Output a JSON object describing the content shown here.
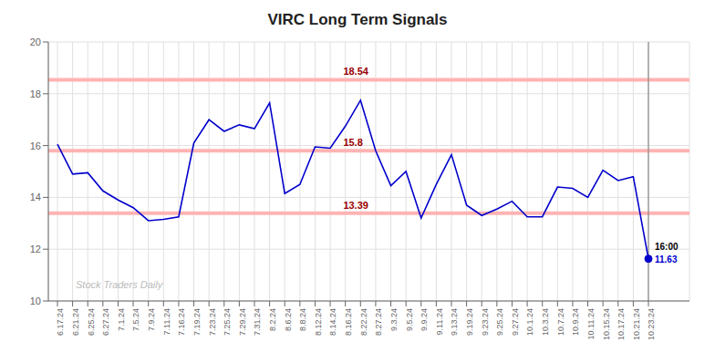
{
  "chart_data": {
    "type": "line",
    "title": "VIRC Long Term Signals",
    "categories": [
      "6.17.24",
      "6.21.24",
      "6.25.24",
      "6.27.24",
      "7.1.24",
      "7.5.24",
      "7.9.24",
      "7.11.24",
      "7.16.24",
      "7.19.24",
      "7.23.24",
      "7.25.24",
      "7.29.24",
      "7.31.24",
      "8.2.24",
      "8.6.24",
      "8.8.24",
      "8.12.24",
      "8.14.24",
      "8.16.24",
      "8.22.24",
      "8.27.24",
      "9.3.24",
      "9.5.24",
      "9.9.24",
      "9.11.24",
      "9.13.24",
      "9.19.24",
      "9.23.24",
      "9.25.24",
      "9.27.24",
      "10.1.24",
      "10.3.24",
      "10.7.24",
      "10.9.24",
      "10.11.24",
      "10.15.24",
      "10.17.24",
      "10.21.24",
      "10.23.24"
    ],
    "values": [
      16.05,
      14.9,
      14.95,
      14.25,
      13.9,
      13.6,
      13.1,
      13.15,
      13.25,
      16.1,
      17.0,
      16.55,
      16.8,
      16.65,
      17.65,
      14.15,
      14.5,
      15.95,
      15.9,
      16.75,
      17.75,
      15.8,
      14.45,
      15.0,
      13.2,
      14.5,
      15.65,
      13.7,
      13.3,
      13.55,
      13.85,
      13.25,
      13.25,
      14.4,
      14.35,
      14.0,
      15.05,
      14.65,
      14.8,
      11.63
    ],
    "color": "#0000cc",
    "ylim": [
      10,
      20
    ],
    "yticks": [
      10,
      12,
      14,
      16,
      18,
      20
    ],
    "grid": true,
    "hlines": [
      18.54,
      15.8,
      13.39
    ],
    "vlines": [
      "10.23.24"
    ],
    "points": [
      {
        "x": "10.23.24",
        "y": 11.63,
        "labels": [
          "16:00",
          "11.63"
        ]
      }
    ],
    "annotations": [
      {
        "text": "Stock Traders Daily"
      }
    ]
  }
}
